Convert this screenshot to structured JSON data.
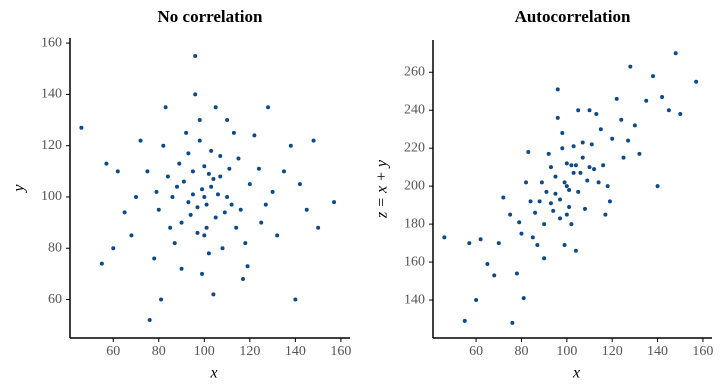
{
  "chart_data": [
    {
      "type": "scatter",
      "title": "No correlation",
      "x_label": "x",
      "y_label": "y",
      "color": "#0d4a8a",
      "xlim": [
        41,
        164
      ],
      "ylim": [
        45,
        162
      ],
      "xticks": [
        60,
        80,
        100,
        120,
        140,
        160
      ],
      "yticks": [
        60,
        80,
        100,
        120,
        140,
        160
      ],
      "x": [
        100,
        95,
        105,
        88,
        112,
        97,
        103,
        80,
        120,
        92,
        108,
        85,
        115,
        99,
        101,
        93,
        107,
        75,
        125,
        90,
        110,
        70,
        130,
        96,
        104,
        82,
        118,
        65,
        135,
        100,
        89,
        111,
        98,
        102,
        78,
        122,
        94,
        106,
        86,
        114,
        57,
        145,
        96,
        76,
        157,
        46,
        140,
        60,
        128,
        83,
        117,
        91,
        109,
        100,
        87,
        113,
        97,
        103,
        72,
        132,
        99,
        105,
        68,
        138,
        93,
        110,
        84,
        116,
        101,
        95,
        55,
        150,
        124,
        79,
        107,
        90,
        119,
        104,
        62,
        142,
        148,
        81,
        127,
        98,
        102
      ],
      "y": [
        100,
        110,
        92,
        104,
        97,
        86,
        118,
        95,
        105,
        125,
        80,
        88,
        115,
        103,
        97,
        98,
        108,
        110,
        90,
        72,
        130,
        100,
        102,
        140,
        62,
        120,
        82,
        94,
        110,
        85,
        113,
        111,
        122,
        78,
        76,
        124,
        93,
        101,
        100,
        88,
        113,
        95,
        155,
        52,
        98,
        127,
        60,
        80,
        135,
        135,
        68,
        106,
        94,
        112,
        82,
        125,
        96,
        104,
        122,
        85,
        70,
        135,
        85,
        120,
        117,
        100,
        108,
        95,
        88,
        101,
        74,
        88,
        111,
        102,
        116,
        90,
        73,
        107,
        110,
        105,
        122,
        60,
        97,
        130,
        109
      ]
    },
    {
      "type": "scatter",
      "title": "Autocorrelation",
      "x_label": "x",
      "y_label": "z = x + y",
      "color": "#0d4a8a",
      "xlim": [
        41,
        164
      ],
      "ylim": [
        120,
        277
      ],
      "xticks": [
        60,
        80,
        100,
        120,
        140,
        160
      ],
      "yticks": [
        140,
        160,
        180,
        200,
        220,
        240,
        260
      ],
      "x": [
        100,
        95,
        105,
        88,
        112,
        97,
        103,
        80,
        120,
        92,
        108,
        85,
        115,
        99,
        101,
        93,
        107,
        75,
        125,
        90,
        110,
        70,
        130,
        96,
        104,
        82,
        118,
        65,
        135,
        100,
        89,
        111,
        98,
        102,
        78,
        122,
        94,
        106,
        86,
        114,
        57,
        145,
        96,
        76,
        157,
        46,
        140,
        60,
        128,
        83,
        117,
        91,
        109,
        100,
        87,
        113,
        97,
        103,
        72,
        132,
        99,
        105,
        68,
        138,
        93,
        110,
        84,
        116,
        101,
        95,
        55,
        150,
        124,
        79,
        107,
        90,
        119,
        104,
        62,
        142,
        148,
        81,
        127,
        98,
        102
      ],
      "y": [
        200,
        205,
        197,
        192,
        209,
        183,
        221,
        175,
        225,
        217,
        188,
        173,
        230,
        202,
        198,
        191,
        215,
        185,
        215,
        162,
        240,
        170,
        232,
        236,
        166,
        202,
        200,
        159,
        245,
        185,
        202,
        222,
        220,
        180,
        154,
        246,
        187,
        207,
        186,
        202,
        170,
        240,
        251,
        128,
        255,
        173,
        200,
        140,
        263,
        218,
        185,
        197,
        203,
        212,
        169,
        238,
        193,
        207,
        194,
        217,
        169,
        240,
        153,
        258,
        210,
        210,
        192,
        211,
        189,
        196,
        129,
        238,
        235,
        181,
        223,
        180,
        192,
        211,
        172,
        247,
        270,
        141,
        224,
        228,
        211
      ]
    }
  ]
}
